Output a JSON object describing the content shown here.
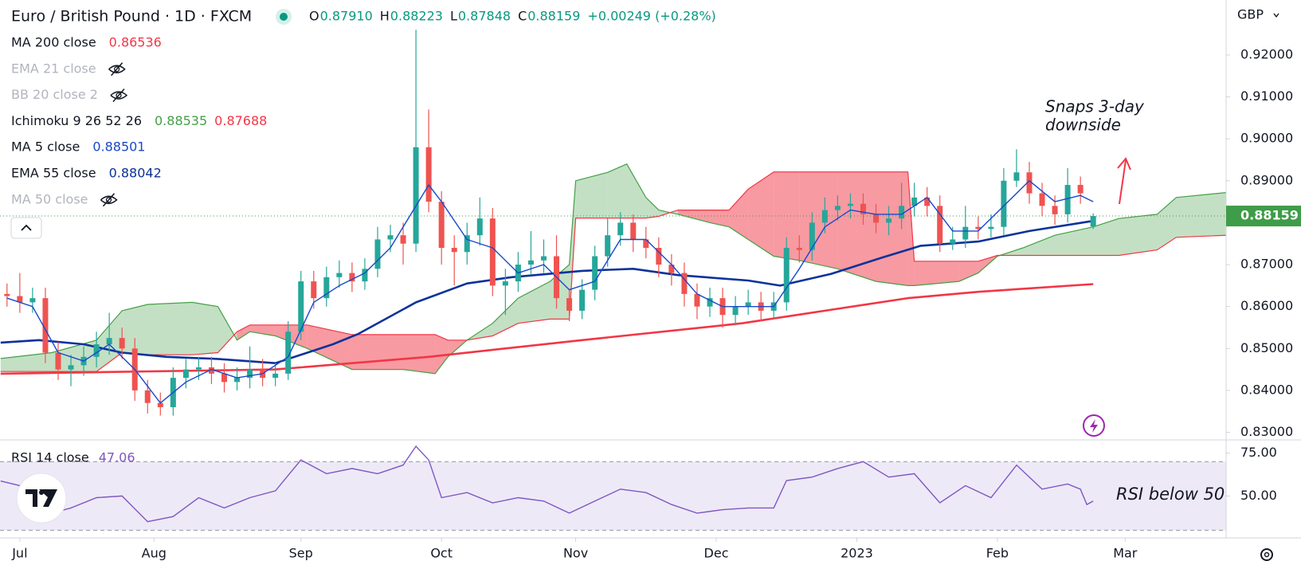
{
  "header": {
    "symbol": "Euro / British Pound · 1D · FXCM",
    "ohlc": [
      {
        "label": "O",
        "value": "0.87910"
      },
      {
        "label": "H",
        "value": "0.88223"
      },
      {
        "label": "L",
        "value": "0.87848"
      },
      {
        "label": "C",
        "value": "0.88159"
      }
    ],
    "change": "+0.00249 (+0.28%)"
  },
  "chart_data": {
    "type": "candlestick",
    "currency": "GBP",
    "xlim": [
      -3.1,
      188.8
    ],
    "xticks": [
      {
        "value": 0,
        "label": "Jul"
      },
      {
        "value": 21,
        "label": "Aug"
      },
      {
        "value": 44,
        "label": "Sep"
      },
      {
        "value": 66,
        "label": "Oct"
      },
      {
        "value": 87,
        "label": "Nov"
      },
      {
        "value": 109,
        "label": "Dec"
      },
      {
        "value": 131,
        "label": "2023"
      },
      {
        "value": 153,
        "label": "Feb"
      },
      {
        "value": 173,
        "label": "Mar"
      }
    ],
    "ylim": [
      0.8282,
      0.9331
    ],
    "yticks": [
      {
        "value": 0.92,
        "label": "0.92000"
      },
      {
        "value": 0.91,
        "label": "0.91000"
      },
      {
        "value": 0.9,
        "label": "0.90000"
      },
      {
        "value": 0.89,
        "label": "0.89000"
      },
      {
        "value": 0.87,
        "label": "0.87000"
      },
      {
        "value": 0.86,
        "label": "0.86000"
      },
      {
        "value": 0.85,
        "label": "0.85000"
      },
      {
        "value": 0.84,
        "label": "0.84000"
      },
      {
        "value": 0.83,
        "label": "0.83000"
      }
    ],
    "last_price": {
      "value": 0.88159,
      "label": "0.88159",
      "color": "#3f9c48"
    },
    "candles": {
      "up_color": "#26a69a",
      "down_color": "#ef5350",
      "x": [
        -2,
        0,
        2,
        4,
        6,
        8,
        10,
        12,
        14,
        16,
        18,
        20,
        22,
        24,
        26,
        28,
        30,
        32,
        34,
        36,
        38,
        40,
        42,
        44,
        46,
        48,
        50,
        52,
        54,
        56,
        58,
        60,
        62,
        64,
        66,
        68,
        70,
        72,
        74,
        76,
        78,
        80,
        82,
        84,
        86,
        88,
        90,
        92,
        94,
        96,
        98,
        100,
        102,
        104,
        106,
        108,
        110,
        112,
        114,
        116,
        118,
        120,
        122,
        124,
        126,
        128,
        130,
        132,
        134,
        136,
        138,
        140,
        142,
        144,
        146,
        148,
        150,
        152,
        154,
        156,
        158,
        160,
        162,
        164,
        166,
        168
      ],
      "open": [
        0.863,
        0.8625,
        0.861,
        0.862,
        0.849,
        0.845,
        0.846,
        0.848,
        0.851,
        0.8525,
        0.85,
        0.84,
        0.837,
        0.836,
        0.843,
        0.845,
        0.8455,
        0.844,
        0.842,
        0.843,
        0.845,
        0.843,
        0.844,
        0.854,
        0.866,
        0.862,
        0.867,
        0.868,
        0.866,
        0.869,
        0.876,
        0.877,
        0.875,
        0.898,
        0.885,
        0.874,
        0.873,
        0.877,
        0.881,
        0.865,
        0.866,
        0.87,
        0.871,
        0.872,
        0.862,
        0.859,
        0.864,
        0.872,
        0.877,
        0.88,
        0.876,
        0.874,
        0.87,
        0.868,
        0.863,
        0.86,
        0.862,
        0.858,
        0.86,
        0.861,
        0.859,
        0.861,
        0.874,
        0.8735,
        0.88,
        0.883,
        0.884,
        0.8845,
        0.882,
        0.88,
        0.881,
        0.884,
        0.886,
        0.884,
        0.875,
        0.876,
        0.879,
        0.8785,
        0.879,
        0.89,
        0.892,
        0.887,
        0.884,
        0.882,
        0.889,
        0.8791
      ],
      "high": [
        0.8655,
        0.868,
        0.8645,
        0.8645,
        0.8515,
        0.8485,
        0.8505,
        0.854,
        0.8585,
        0.855,
        0.8525,
        0.8425,
        0.8395,
        0.8455,
        0.8475,
        0.848,
        0.848,
        0.8465,
        0.8455,
        0.8505,
        0.8475,
        0.8465,
        0.8565,
        0.8685,
        0.8685,
        0.8695,
        0.871,
        0.8705,
        0.8715,
        0.879,
        0.8795,
        0.88,
        0.926,
        0.907,
        0.8875,
        0.877,
        0.88,
        0.886,
        0.8835,
        0.869,
        0.873,
        0.878,
        0.876,
        0.877,
        0.864,
        0.8665,
        0.8745,
        0.881,
        0.8825,
        0.882,
        0.879,
        0.8765,
        0.8725,
        0.8705,
        0.8655,
        0.8645,
        0.8645,
        0.8625,
        0.864,
        0.8635,
        0.8635,
        0.8765,
        0.877,
        0.8825,
        0.886,
        0.8865,
        0.887,
        0.887,
        0.8845,
        0.884,
        0.8895,
        0.8895,
        0.8885,
        0.8865,
        0.879,
        0.884,
        0.8815,
        0.882,
        0.893,
        0.8975,
        0.8945,
        0.8895,
        0.8865,
        0.893,
        0.891,
        0.88223
      ],
      "low": [
        0.86,
        0.8585,
        0.8585,
        0.8465,
        0.8425,
        0.841,
        0.8435,
        0.8455,
        0.8485,
        0.8475,
        0.8375,
        0.8345,
        0.834,
        0.834,
        0.8405,
        0.8425,
        0.8415,
        0.8395,
        0.84,
        0.8405,
        0.841,
        0.841,
        0.8425,
        0.852,
        0.8595,
        0.86,
        0.8645,
        0.8635,
        0.864,
        0.867,
        0.873,
        0.87,
        0.873,
        0.8825,
        0.87,
        0.865,
        0.87,
        0.8745,
        0.8625,
        0.858,
        0.8635,
        0.8675,
        0.868,
        0.8595,
        0.8565,
        0.857,
        0.8615,
        0.8695,
        0.8745,
        0.873,
        0.8715,
        0.867,
        0.865,
        0.86,
        0.857,
        0.8575,
        0.855,
        0.8555,
        0.858,
        0.8565,
        0.857,
        0.859,
        0.8705,
        0.871,
        0.8775,
        0.8805,
        0.881,
        0.8795,
        0.8775,
        0.877,
        0.8785,
        0.8815,
        0.8815,
        0.873,
        0.8735,
        0.874,
        0.876,
        0.8765,
        0.877,
        0.8885,
        0.8845,
        0.8815,
        0.8795,
        0.88,
        0.8845,
        0.87848
      ],
      "close": [
        0.8625,
        0.861,
        0.862,
        0.849,
        0.845,
        0.846,
        0.848,
        0.851,
        0.8525,
        0.85,
        0.84,
        0.837,
        0.836,
        0.843,
        0.845,
        0.8455,
        0.844,
        0.842,
        0.843,
        0.845,
        0.843,
        0.844,
        0.854,
        0.866,
        0.862,
        0.867,
        0.868,
        0.866,
        0.869,
        0.876,
        0.877,
        0.875,
        0.898,
        0.885,
        0.874,
        0.873,
        0.877,
        0.881,
        0.865,
        0.866,
        0.87,
        0.871,
        0.872,
        0.862,
        0.859,
        0.864,
        0.872,
        0.877,
        0.88,
        0.876,
        0.874,
        0.87,
        0.868,
        0.863,
        0.86,
        0.862,
        0.858,
        0.86,
        0.861,
        0.859,
        0.861,
        0.874,
        0.8735,
        0.88,
        0.883,
        0.884,
        0.8845,
        0.882,
        0.88,
        0.881,
        0.884,
        0.886,
        0.884,
        0.875,
        0.876,
        0.879,
        0.8785,
        0.879,
        0.89,
        0.892,
        0.887,
        0.884,
        0.882,
        0.889,
        0.887,
        0.88159
      ]
    },
    "indicators": [
      {
        "name": "MA 200 close",
        "visible": true,
        "legend_values": [
          "0.86536"
        ],
        "color": "#f23645",
        "x": [
          -3,
          40,
          64,
          88,
          113,
          126,
          139,
          150,
          168
        ],
        "values": [
          0.844,
          0.845,
          0.848,
          0.852,
          0.856,
          0.859,
          0.862,
          0.8635,
          0.86536
        ]
      },
      {
        "name": "EMA 21 close",
        "visible": false
      },
      {
        "name": "BB 20 close 2",
        "visible": false
      },
      {
        "name": "Ichimoku 9 26 52 26",
        "visible": true,
        "legend_values": [
          "0.88535",
          "0.87688"
        ],
        "colors": [
          "#43a047",
          "#f23645"
        ],
        "x": [
          -3,
          5,
          12,
          16,
          20,
          27,
          31,
          34,
          36,
          40,
          45,
          52,
          60,
          65,
          67,
          70,
          74,
          78,
          83,
          86,
          87,
          92,
          95,
          98,
          100,
          103,
          108,
          111,
          114,
          118,
          122,
          128,
          134,
          139,
          140,
          147,
          150,
          153,
          157,
          162,
          168,
          172,
          178,
          181,
          189
        ],
        "span_a": [
          0.8476,
          0.849,
          0.852,
          0.859,
          0.8605,
          0.861,
          0.86,
          0.852,
          0.854,
          0.853,
          0.85,
          0.845,
          0.845,
          0.844,
          0.848,
          0.852,
          0.856,
          0.862,
          0.866,
          0.87,
          0.89,
          0.892,
          0.894,
          0.886,
          0.883,
          0.882,
          0.88,
          0.879,
          0.876,
          0.872,
          0.871,
          0.869,
          0.866,
          0.865,
          0.865,
          0.866,
          0.868,
          0.872,
          0.874,
          0.877,
          0.879,
          0.881,
          0.882,
          0.886,
          0.8872
        ],
        "span_b": [
          0.8445,
          0.8445,
          0.8445,
          0.849,
          0.8485,
          0.8485,
          0.849,
          0.854,
          0.8556,
          0.8556,
          0.8556,
          0.8533,
          0.8533,
          0.8533,
          0.852,
          0.852,
          0.853,
          0.856,
          0.857,
          0.857,
          0.8811,
          0.8811,
          0.8811,
          0.8811,
          0.8815,
          0.883,
          0.883,
          0.883,
          0.888,
          0.8921,
          0.8921,
          0.8921,
          0.8921,
          0.8921,
          0.8708,
          0.8708,
          0.8708,
          0.8722,
          0.8722,
          0.8722,
          0.8722,
          0.8722,
          0.8735,
          0.8765,
          0.877
        ]
      },
      {
        "name": "MA 5 close",
        "visible": true,
        "legend_values": [
          "0.88501"
        ],
        "color": "#1848cc",
        "x": [
          -2,
          2,
          6,
          10,
          14,
          18,
          22,
          26,
          30,
          34,
          38,
          42,
          46,
          50,
          54,
          58,
          62,
          64,
          66,
          70,
          74,
          78,
          82,
          86,
          90,
          94,
          98,
          102,
          106,
          110,
          114,
          118,
          122,
          126,
          130,
          134,
          138,
          142,
          146,
          150,
          154,
          158,
          162,
          166,
          168
        ],
        "values": [
          0.862,
          0.86,
          0.849,
          0.847,
          0.851,
          0.845,
          0.837,
          0.842,
          0.845,
          0.843,
          0.844,
          0.848,
          0.861,
          0.865,
          0.868,
          0.874,
          0.884,
          0.889,
          0.885,
          0.876,
          0.874,
          0.868,
          0.87,
          0.864,
          0.866,
          0.876,
          0.876,
          0.87,
          0.863,
          0.86,
          0.86,
          0.86,
          0.869,
          0.879,
          0.883,
          0.882,
          0.882,
          0.886,
          0.878,
          0.878,
          0.884,
          0.89,
          0.885,
          0.8865,
          0.88501
        ]
      },
      {
        "name": "EMA 55 close",
        "visible": true,
        "legend_values": [
          "0.88042"
        ],
        "color": "#0c3299",
        "x": [
          -3,
          3,
          10,
          16,
          23,
          31,
          40,
          49,
          53,
          62,
          70,
          77,
          88,
          96,
          103,
          114,
          119,
          127,
          135,
          141,
          150,
          158,
          168
        ],
        "values": [
          0.8514,
          0.852,
          0.851,
          0.849,
          0.848,
          0.8475,
          0.8465,
          0.851,
          0.8535,
          0.861,
          0.8655,
          0.867,
          0.8685,
          0.869,
          0.8675,
          0.8662,
          0.865,
          0.8678,
          0.8717,
          0.8745,
          0.8755,
          0.878,
          0.88042
        ]
      },
      {
        "name": "MA 50 close",
        "visible": false
      }
    ],
    "annotation": [
      "Snaps 3-day",
      "downside"
    ],
    "rsi": {
      "name": "RSI 14 close",
      "legend_value": "47.06",
      "color": "#7e57c2",
      "annotation": "RSI below 50",
      "ylim": [
        26,
        82.7
      ],
      "yticks": [
        {
          "value": 75,
          "label": "75.00"
        },
        {
          "value": 50,
          "label": "50.00"
        }
      ],
      "band": [
        30,
        70
      ],
      "x": [
        -3,
        0,
        4,
        8,
        12,
        16,
        20,
        24,
        28,
        32,
        36,
        40,
        44,
        48,
        52,
        56,
        60,
        62,
        64,
        66,
        70,
        74,
        78,
        82,
        86,
        90,
        94,
        98,
        102,
        106,
        110,
        114,
        118,
        120,
        124,
        128,
        132,
        136,
        140,
        144,
        148,
        152,
        156,
        160,
        164,
        166,
        167,
        168
      ],
      "values": [
        58.7,
        56,
        39,
        43,
        49,
        50,
        35,
        38,
        49,
        43,
        49,
        53,
        71,
        63,
        66,
        63,
        68,
        79,
        71,
        49,
        52,
        46,
        49,
        47,
        40,
        47,
        54,
        52,
        45,
        40,
        42,
        43,
        43,
        59,
        61,
        66,
        70,
        61,
        63,
        46,
        56,
        49,
        68,
        54,
        57,
        54,
        45,
        47.06
      ]
    }
  }
}
